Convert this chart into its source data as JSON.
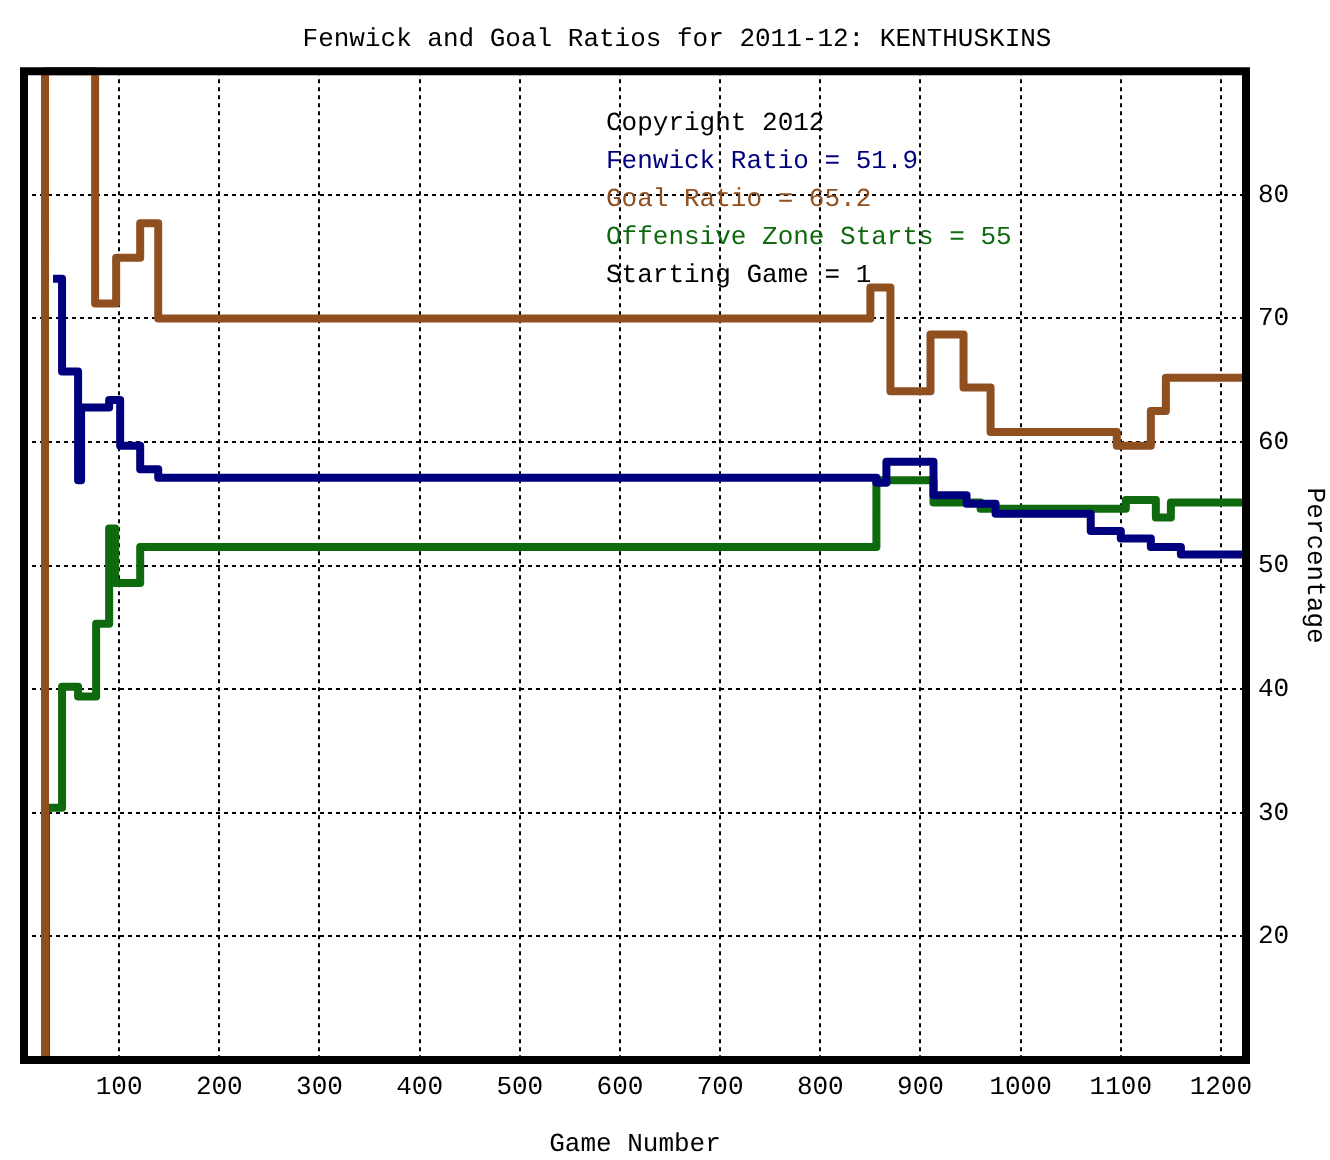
{
  "chart_data": {
    "type": "step",
    "title": "Fenwick and Goal Ratios for 2011-12: KENTHUSKINS",
    "xlabel": "Game Number",
    "ylabel": "Percentage",
    "xlim": [
      5,
      1225
    ],
    "xticks": [
      100,
      200,
      300,
      400,
      500,
      600,
      700,
      800,
      900,
      1000,
      1100,
      1200
    ],
    "ylim": [
      10,
      90
    ],
    "yticks": [
      20,
      30,
      40,
      50,
      60,
      70,
      80
    ],
    "grid": true,
    "legend": "top right",
    "annotations": [
      "Copyright 2012",
      "Starting Game = 1"
    ],
    "series": [
      {
        "name": "Fenwick Ratio = 51.9",
        "color": "#00007f",
        "x": [
          34,
          43,
          59,
          62,
          90,
          101,
          121,
          139,
          856,
          866,
          913,
          946,
          975,
          1070,
          1100,
          1130,
          1160,
          1225
        ],
        "values": [
          73.2,
          65.7,
          56.9,
          62.8,
          63.4,
          59.7,
          57.8,
          57.1,
          56.7,
          58.4,
          55.7,
          55,
          54.2,
          52.8,
          52.2,
          51.5,
          50.9,
          50.9
        ]
      },
      {
        "name": "Goal Ratio = 65.2",
        "color": "#8f4f1f",
        "x": [
          26,
          26,
          76,
          97,
          121,
          139,
          850,
          870,
          910,
          943,
          970,
          1096,
          1130,
          1145,
          1225
        ],
        "values": [
          10,
          90,
          71.2,
          74.9,
          77.7,
          70,
          72.5,
          64.1,
          68.7,
          64.4,
          60.8,
          59.7,
          62.5,
          65.2,
          65.2
        ]
      },
      {
        "name": "Offensive Zone Starts = 55",
        "color": "#0f6a0f",
        "x": [
          27,
          27,
          43,
          59,
          77,
          90,
          96,
          121,
          856,
          913,
          960,
          1105,
          1135,
          1150,
          1225
        ],
        "values": [
          10,
          30.4,
          40.2,
          39.4,
          45.3,
          53,
          48.6,
          51.5,
          56.9,
          55.1,
          54.6,
          55.3,
          53.9,
          55.1,
          55.3
        ]
      }
    ]
  }
}
